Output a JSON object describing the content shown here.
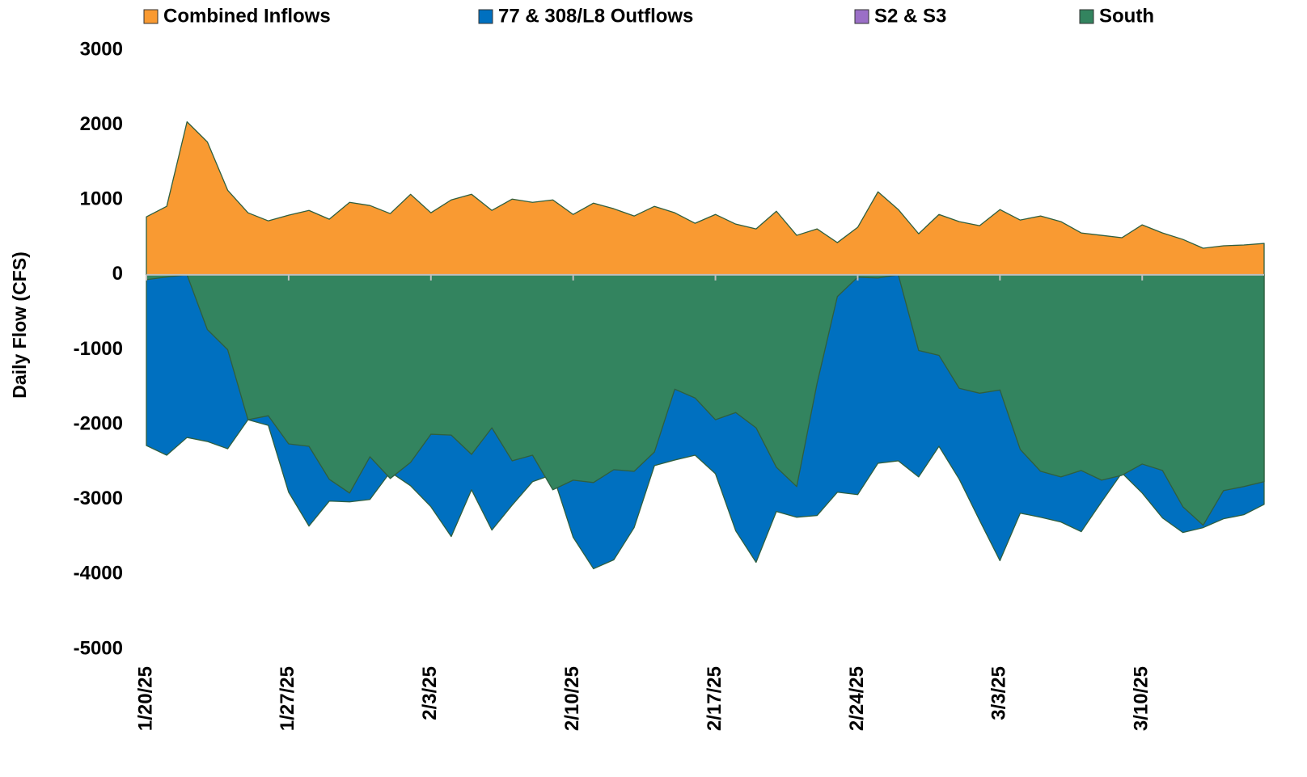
{
  "chart_data": {
    "type": "area",
    "y_label": "Daily Flow (CFS)",
    "categories": [
      "1/20/25",
      null,
      null,
      null,
      null,
      null,
      null,
      "1/27/25",
      null,
      null,
      null,
      null,
      null,
      null,
      "2/3/25",
      null,
      null,
      null,
      null,
      null,
      null,
      "2/10/25",
      null,
      null,
      null,
      null,
      null,
      null,
      "2/17/25",
      null,
      null,
      null,
      null,
      null,
      null,
      "2/24/25",
      null,
      null,
      null,
      null,
      null,
      null,
      "3/3/25",
      null,
      null,
      null,
      null,
      null,
      null,
      "3/10/25",
      null,
      null,
      null,
      null,
      null,
      null
    ],
    "series": [
      {
        "name": "Combined Inflows",
        "color": "#f99a32",
        "values": [
          774,
          914,
          2043,
          1774,
          1129,
          828,
          720,
          796,
          860,
          742,
          968,
          925,
          817,
          1075,
          828,
          1000,
          1075,
          860,
          1011,
          968,
          1000,
          806,
          957,
          882,
          785,
          914,
          828,
          688,
          806,
          677,
          613,
          849,
          527,
          613,
          430,
          634,
          1108,
          871,
          548,
          806,
          710,
          656,
          871,
          731,
          785,
          710,
          559,
          527,
          495,
          667,
          559,
          473,
          355,
          387,
          398,
          419
        ]
      },
      {
        "name": "77 & 308/L8 Outflows",
        "color": "#0070c0",
        "values": [
          -2280,
          -2409,
          -2172,
          -2226,
          -2323,
          -1935,
          -2011,
          -2903,
          -3355,
          -3022,
          -3032,
          -3000,
          -2634,
          -2817,
          -3097,
          -3495,
          -2871,
          -3409,
          -3075,
          -2763,
          -2667,
          -3505,
          -3925,
          -3806,
          -3376,
          -2548,
          -2473,
          -2409,
          -2656,
          -3419,
          -3839,
          -3161,
          -3237,
          -3215,
          -2903,
          -2935,
          -2516,
          -2484,
          -2699,
          -2290,
          -2731,
          -3280,
          -3817,
          -3183,
          -3237,
          -3301,
          -3430,
          -3032,
          -2645,
          -2914,
          -3247,
          -3441,
          -3376,
          -3258,
          -3204,
          -3065
        ]
      },
      {
        "name": "S2 & S3",
        "color": "#9b6fc7",
        "values": [
          0,
          0,
          0,
          0,
          0,
          0,
          0,
          0,
          0,
          0,
          0,
          0,
          0,
          0,
          0,
          0,
          0,
          0,
          0,
          0,
          0,
          0,
          0,
          0,
          0,
          0,
          0,
          0,
          0,
          0,
          0,
          0,
          0,
          0,
          0,
          0,
          0,
          0,
          0,
          0,
          0,
          0,
          0,
          0,
          0,
          0,
          0,
          0,
          0,
          0,
          0,
          0,
          0,
          0,
          0,
          0
        ]
      },
      {
        "name": "South",
        "color": "#33845f",
        "values": [
          -65,
          -30,
          0,
          -731,
          -1000,
          -1935,
          -1882,
          -2258,
          -2290,
          -2731,
          -2914,
          -2430,
          -2720,
          -2505,
          -2129,
          -2140,
          -2398,
          -2043,
          -2484,
          -2409,
          -2871,
          -2742,
          -2774,
          -2602,
          -2624,
          -2366,
          -1527,
          -1645,
          -1935,
          -1839,
          -2043,
          -2570,
          -2828,
          -1452,
          -290,
          -32,
          -43,
          0,
          -1011,
          -1075,
          -1516,
          -1581,
          -1538,
          -2333,
          -2624,
          -2699,
          -2613,
          -2742,
          -2677,
          -2527,
          -2613,
          -3097,
          -3344,
          -2882,
          -2828,
          -2763
        ]
      }
    ],
    "ylim": [
      -5000,
      3000
    ],
    "yticks": [
      -5000,
      -4000,
      -3000,
      -2000,
      -1000,
      0,
      1000,
      2000,
      3000
    ],
    "grid": false,
    "legend": "top"
  }
}
